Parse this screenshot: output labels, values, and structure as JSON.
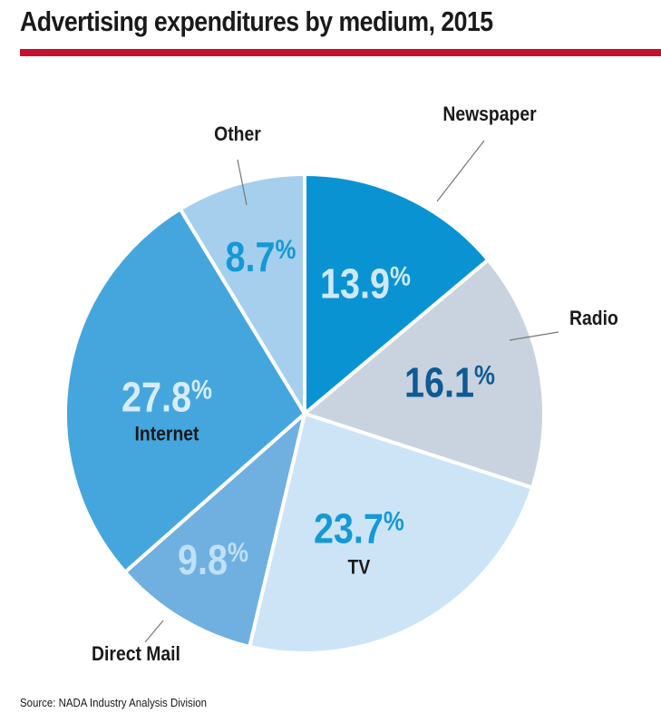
{
  "title": "Advertising expenditures by medium, 2015",
  "source": "Source: NADA Industry Analysis Division",
  "colors": {
    "rule": "#c8102e"
  },
  "chart_data": {
    "type": "pie",
    "title": "Advertising expenditures by medium, 2015",
    "unit": "%",
    "slices": [
      {
        "label": "Newspaper",
        "value": 13.9,
        "value_label": "13.9",
        "color": "#0993d3",
        "value_color": "#cfe8f8"
      },
      {
        "label": "Radio",
        "value": 16.1,
        "value_label": "16.1",
        "color": "#c9d3df",
        "value_color": "#0e5a94"
      },
      {
        "label": "TV",
        "value": 23.7,
        "value_label": "23.7",
        "color": "#cde4f7",
        "value_color": "#1499d6"
      },
      {
        "label": "Direct Mail",
        "value": 9.8,
        "value_label": "9.8",
        "color": "#6fb0e0",
        "value_color": "#bfe0f6"
      },
      {
        "label": "Internet",
        "value": 27.8,
        "value_label": "27.8",
        "color": "#45a6de",
        "value_color": "#d6ecfa"
      },
      {
        "label": "Other",
        "value": 8.7,
        "value_label": "8.7",
        "color": "#a6cfee",
        "value_color": "#1499d6"
      }
    ]
  }
}
